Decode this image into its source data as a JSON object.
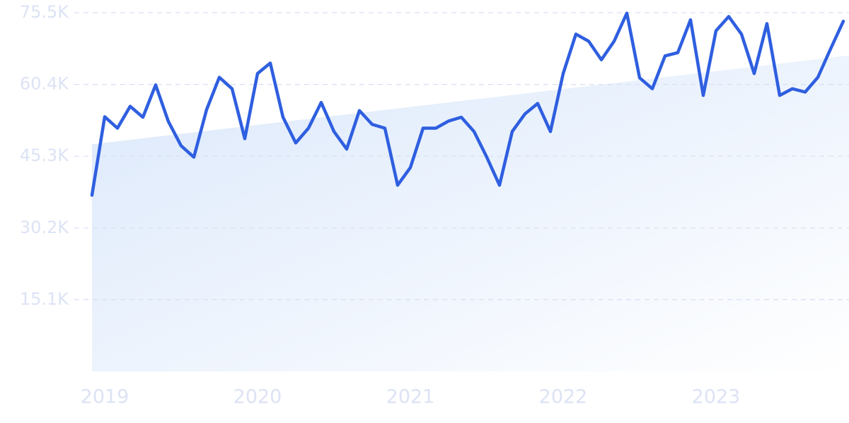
{
  "chart_data": {
    "type": "line",
    "categories": [
      null,
      "2019",
      null,
      null,
      null,
      null,
      null,
      null,
      null,
      null,
      null,
      null,
      null,
      "2020",
      null,
      null,
      null,
      null,
      null,
      null,
      null,
      null,
      null,
      null,
      null,
      "2021",
      null,
      null,
      null,
      null,
      null,
      null,
      null,
      null,
      null,
      null,
      null,
      "2022",
      null,
      null,
      null,
      null,
      null,
      null,
      null,
      null,
      null,
      null,
      null,
      "2023",
      null,
      null,
      null,
      null,
      null,
      null,
      null,
      null,
      null,
      null
    ],
    "values": [
      37100,
      53600,
      51200,
      55800,
      53500,
      60300,
      52600,
      47500,
      45100,
      55100,
      61900,
      59500,
      49000,
      62700,
      64900,
      53500,
      48100,
      51200,
      56600,
      50500,
      46800,
      54900,
      52000,
      51200,
      39200,
      42900,
      51200,
      51200,
      52700,
      53500,
      50500,
      45100,
      39200,
      50500,
      54200,
      56400,
      50500,
      62700,
      71000,
      69500,
      65600,
      69500,
      75400,
      61800,
      59500,
      66400,
      67100,
      74000,
      58100,
      71700,
      74700,
      71000,
      62700,
      73200,
      58100,
      59500,
      58800,
      61900,
      67900,
      73700
    ],
    "color": "#2f5fe0",
    "trend_values": [
      47800,
      66500
    ],
    "trend_color": "#dbe8fb",
    "ylim": [
      0,
      75500
    ],
    "yticks": [
      {
        "value": 15100,
        "label": "15.1K"
      },
      {
        "value": 30200,
        "label": "30.2K"
      },
      {
        "value": 45300,
        "label": "45.3K"
      },
      {
        "value": 60400,
        "label": "60.4K"
      },
      {
        "value": 75500,
        "label": "75.5K"
      }
    ],
    "grid": true
  }
}
